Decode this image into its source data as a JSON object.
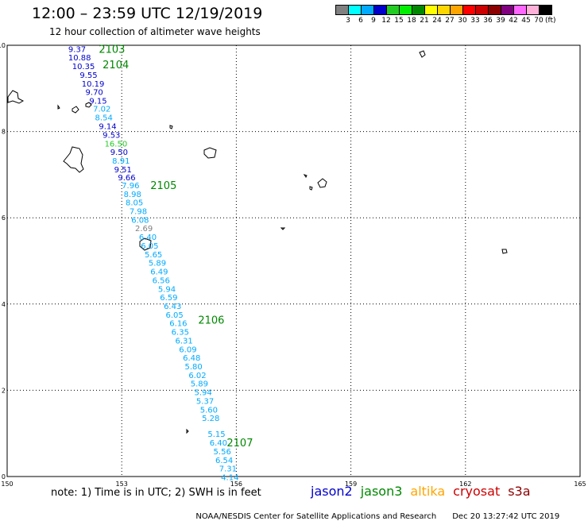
{
  "header": {
    "title": "12:00 – 23:59 UTC 12/19/2019",
    "subtitle": "12 hour collection of altimeter wave heights"
  },
  "colorbar": {
    "unit_label": "(ft)",
    "ticks": [
      "3",
      "6",
      "9",
      "12",
      "15",
      "18",
      "21",
      "24",
      "27",
      "30",
      "33",
      "36",
      "39",
      "42",
      "45",
      "70"
    ],
    "colors": [
      "#808080",
      "#00ffff",
      "#00aaff",
      "#0000cc",
      "#22cc22",
      "#00ee00",
      "#008800",
      "#ffff00",
      "#ffd700",
      "#ffa500",
      "#ff0000",
      "#cc0000",
      "#8b0000",
      "#800080",
      "#ff66ff",
      "#ffb0d8",
      "#000000"
    ]
  },
  "map": {
    "x_axis": {
      "ticks": [
        "150",
        "153",
        "156",
        "159",
        "162",
        "165"
      ],
      "range": [
        150,
        165
      ]
    },
    "y_axis": {
      "ticks": [
        "0",
        "2",
        "4",
        "6",
        "8",
        "10"
      ],
      "range": [
        0,
        10
      ]
    },
    "grid": "dotted",
    "land_color": "#000000",
    "orbit_labels": [
      {
        "id": "2103",
        "lon": 152.4,
        "lat": 9.92,
        "color": "#008800"
      },
      {
        "id": "2104",
        "lon": 152.5,
        "lat": 9.56,
        "color": "#008800"
      },
      {
        "id": "2105",
        "lon": 153.75,
        "lat": 6.76,
        "color": "#008800"
      },
      {
        "id": "2106",
        "lon": 155.0,
        "lat": 3.64,
        "color": "#008800"
      },
      {
        "id": "2107",
        "lon": 155.75,
        "lat": 0.79,
        "color": "#008800"
      }
    ],
    "observations": [
      {
        "v": "9.37",
        "lon": 151.6,
        "lat": 9.92,
        "color": "#0000cc"
      },
      {
        "v": "10.88",
        "lon": 151.6,
        "lat": 9.72,
        "color": "#0000cc"
      },
      {
        "v": "10.35",
        "lon": 151.7,
        "lat": 9.52,
        "color": "#0000cc"
      },
      {
        "v": "9.55",
        "lon": 151.9,
        "lat": 9.32,
        "color": "#0000cc"
      },
      {
        "v": "10.19",
        "lon": 151.95,
        "lat": 9.12,
        "color": "#0000cc"
      },
      {
        "v": "9.70",
        "lon": 152.05,
        "lat": 8.92,
        "color": "#0000cc"
      },
      {
        "v": "9.15",
        "lon": 152.15,
        "lat": 8.72,
        "color": "#0000cc"
      },
      {
        "v": "7.02",
        "lon": 152.25,
        "lat": 8.54,
        "color": "#00aaff"
      },
      {
        "v": "8.54",
        "lon": 152.3,
        "lat": 8.33,
        "color": "#00aaff"
      },
      {
        "v": "9.14",
        "lon": 152.4,
        "lat": 8.13,
        "color": "#0000cc"
      },
      {
        "v": "9.53",
        "lon": 152.5,
        "lat": 7.93,
        "color": "#0000cc"
      },
      {
        "v": "16.50",
        "lon": 152.55,
        "lat": 7.73,
        "color": "#22cc22"
      },
      {
        "v": "9.50",
        "lon": 152.7,
        "lat": 7.53,
        "color": "#0000cc"
      },
      {
        "v": "8.91",
        "lon": 152.75,
        "lat": 7.33,
        "color": "#00aaff"
      },
      {
        "v": "9.51",
        "lon": 152.8,
        "lat": 7.13,
        "color": "#0000cc"
      },
      {
        "v": "9.66",
        "lon": 152.9,
        "lat": 6.94,
        "color": "#0000cc"
      },
      {
        "v": "7.96",
        "lon": 153.0,
        "lat": 6.76,
        "color": "#00aaff"
      },
      {
        "v": "8.98",
        "lon": 153.05,
        "lat": 6.56,
        "color": "#00aaff"
      },
      {
        "v": "8.05",
        "lon": 153.1,
        "lat": 6.36,
        "color": "#00aaff"
      },
      {
        "v": "7.98",
        "lon": 153.2,
        "lat": 6.16,
        "color": "#00aaff"
      },
      {
        "v": "6.08",
        "lon": 153.25,
        "lat": 5.96,
        "color": "#00aaff"
      },
      {
        "v": "2.69",
        "lon": 153.35,
        "lat": 5.76,
        "color": "#808080"
      },
      {
        "v": "6.40",
        "lon": 153.45,
        "lat": 5.56,
        "color": "#00aaff"
      },
      {
        "v": "6.05",
        "lon": 153.5,
        "lat": 5.36,
        "color": "#00aaff"
      },
      {
        "v": "5.65",
        "lon": 153.6,
        "lat": 5.16,
        "color": "#00aaff"
      },
      {
        "v": "5.89",
        "lon": 153.7,
        "lat": 4.96,
        "color": "#00aaff"
      },
      {
        "v": "6.49",
        "lon": 153.75,
        "lat": 4.76,
        "color": "#00aaff"
      },
      {
        "v": "6.56",
        "lon": 153.8,
        "lat": 4.56,
        "color": "#00aaff"
      },
      {
        "v": "5.94",
        "lon": 153.95,
        "lat": 4.36,
        "color": "#00aaff"
      },
      {
        "v": "6.59",
        "lon": 154.0,
        "lat": 4.16,
        "color": "#00aaff"
      },
      {
        "v": "6.43",
        "lon": 154.1,
        "lat": 3.96,
        "color": "#00aaff"
      },
      {
        "v": "6.05",
        "lon": 154.15,
        "lat": 3.76,
        "color": "#00aaff"
      },
      {
        "v": "6.16",
        "lon": 154.25,
        "lat": 3.56,
        "color": "#00aaff"
      },
      {
        "v": "6.35",
        "lon": 154.3,
        "lat": 3.36,
        "color": "#00aaff"
      },
      {
        "v": "6.31",
        "lon": 154.4,
        "lat": 3.16,
        "color": "#00aaff"
      },
      {
        "v": "6.09",
        "lon": 154.5,
        "lat": 2.96,
        "color": "#00aaff"
      },
      {
        "v": "6.48",
        "lon": 154.6,
        "lat": 2.76,
        "color": "#00aaff"
      },
      {
        "v": "5.80",
        "lon": 154.65,
        "lat": 2.56,
        "color": "#00aaff"
      },
      {
        "v": "6.02",
        "lon": 154.75,
        "lat": 2.36,
        "color": "#00aaff"
      },
      {
        "v": "5.89",
        "lon": 154.8,
        "lat": 2.16,
        "color": "#00aaff"
      },
      {
        "v": "5.94",
        "lon": 154.9,
        "lat": 1.96,
        "color": "#00aaff"
      },
      {
        "v": "5.37",
        "lon": 154.95,
        "lat": 1.76,
        "color": "#00aaff"
      },
      {
        "v": "5.60",
        "lon": 155.05,
        "lat": 1.56,
        "color": "#00aaff"
      },
      {
        "v": "5.28",
        "lon": 155.1,
        "lat": 1.36,
        "color": "#00aaff"
      },
      {
        "v": "5.15",
        "lon": 155.25,
        "lat": 0.99,
        "color": "#00aaff"
      },
      {
        "v": "6.40",
        "lon": 155.3,
        "lat": 0.79,
        "color": "#00aaff"
      },
      {
        "v": "5.56",
        "lon": 155.4,
        "lat": 0.59,
        "color": "#00aaff"
      },
      {
        "v": "6.54",
        "lon": 155.45,
        "lat": 0.39,
        "color": "#00aaff"
      },
      {
        "v": "7.31",
        "lon": 155.55,
        "lat": 0.19,
        "color": "#00aaff"
      },
      {
        "v": "4.14",
        "lon": 155.6,
        "lat": -0.01,
        "color": "#00aaff"
      }
    ]
  },
  "legend": {
    "note": "note: 1) Time is in UTC; 2) SWH is in feet",
    "missions": [
      {
        "name": "jason2",
        "color": "#0000cc"
      },
      {
        "name": "jason3",
        "color": "#008800"
      },
      {
        "name": "altika",
        "color": "#ffa500"
      },
      {
        "name": "cryosat",
        "color": "#cc0000"
      },
      {
        "name": "s3a",
        "color": "#8b0000"
      }
    ]
  },
  "footer": {
    "credit": "NOAA/NESDIS Center for Satellite Applications and Research",
    "timestamp": "Dec 20 13:27:42 UTC 2019"
  }
}
